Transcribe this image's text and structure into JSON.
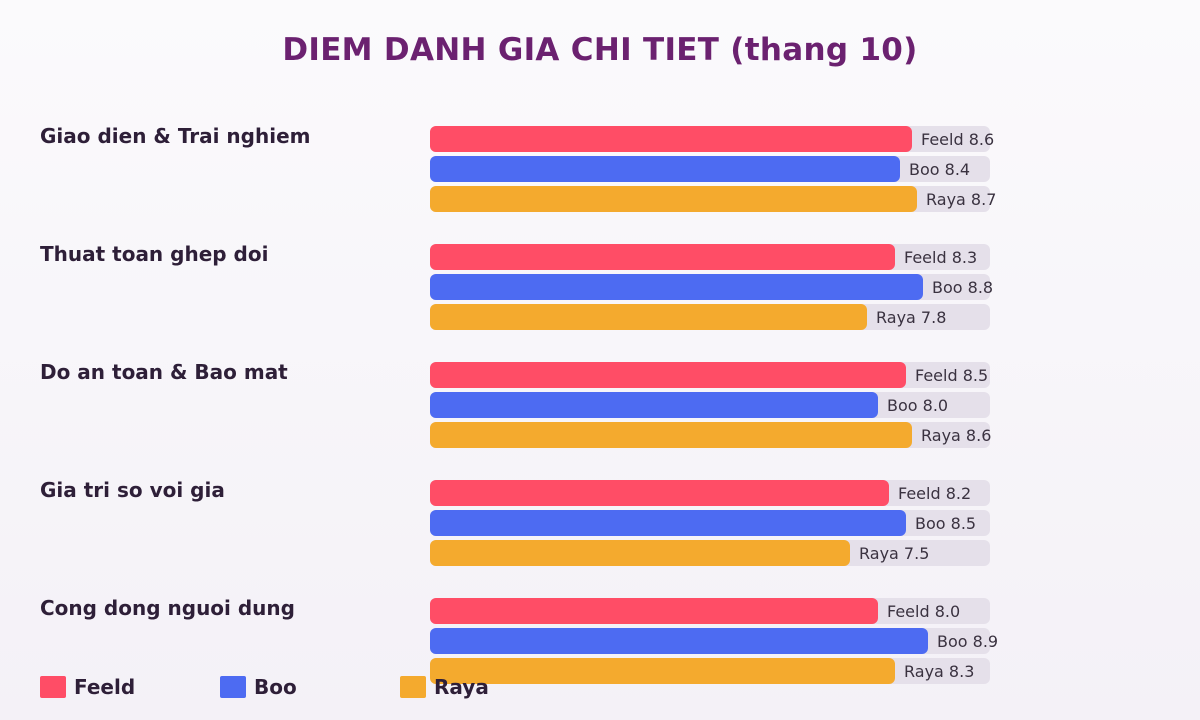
{
  "chart_data": {
    "type": "bar",
    "orientation": "horizontal",
    "title": "DIEM DANH GIA CHI TIET (thang 10)",
    "xlim": [
      0,
      10
    ],
    "grid": false,
    "legend_position": "bottom-left",
    "categories": [
      "Giao dien & Trai nghiem",
      "Thuat toan ghep doi",
      "Do an toan & Bao mat",
      "Gia tri so voi gia",
      "Cong dong nguoi dung"
    ],
    "series": [
      {
        "name": "Feeld",
        "color": "#ff4d66",
        "values": [
          8.6,
          8.3,
          8.5,
          8.2,
          8.0
        ]
      },
      {
        "name": "Boo",
        "color": "#4d6bf2",
        "values": [
          8.4,
          8.8,
          8.0,
          8.5,
          8.9
        ]
      },
      {
        "name": "Raya",
        "color": "#f4aa2e",
        "values": [
          8.7,
          7.8,
          8.6,
          7.5,
          8.3
        ]
      }
    ]
  }
}
